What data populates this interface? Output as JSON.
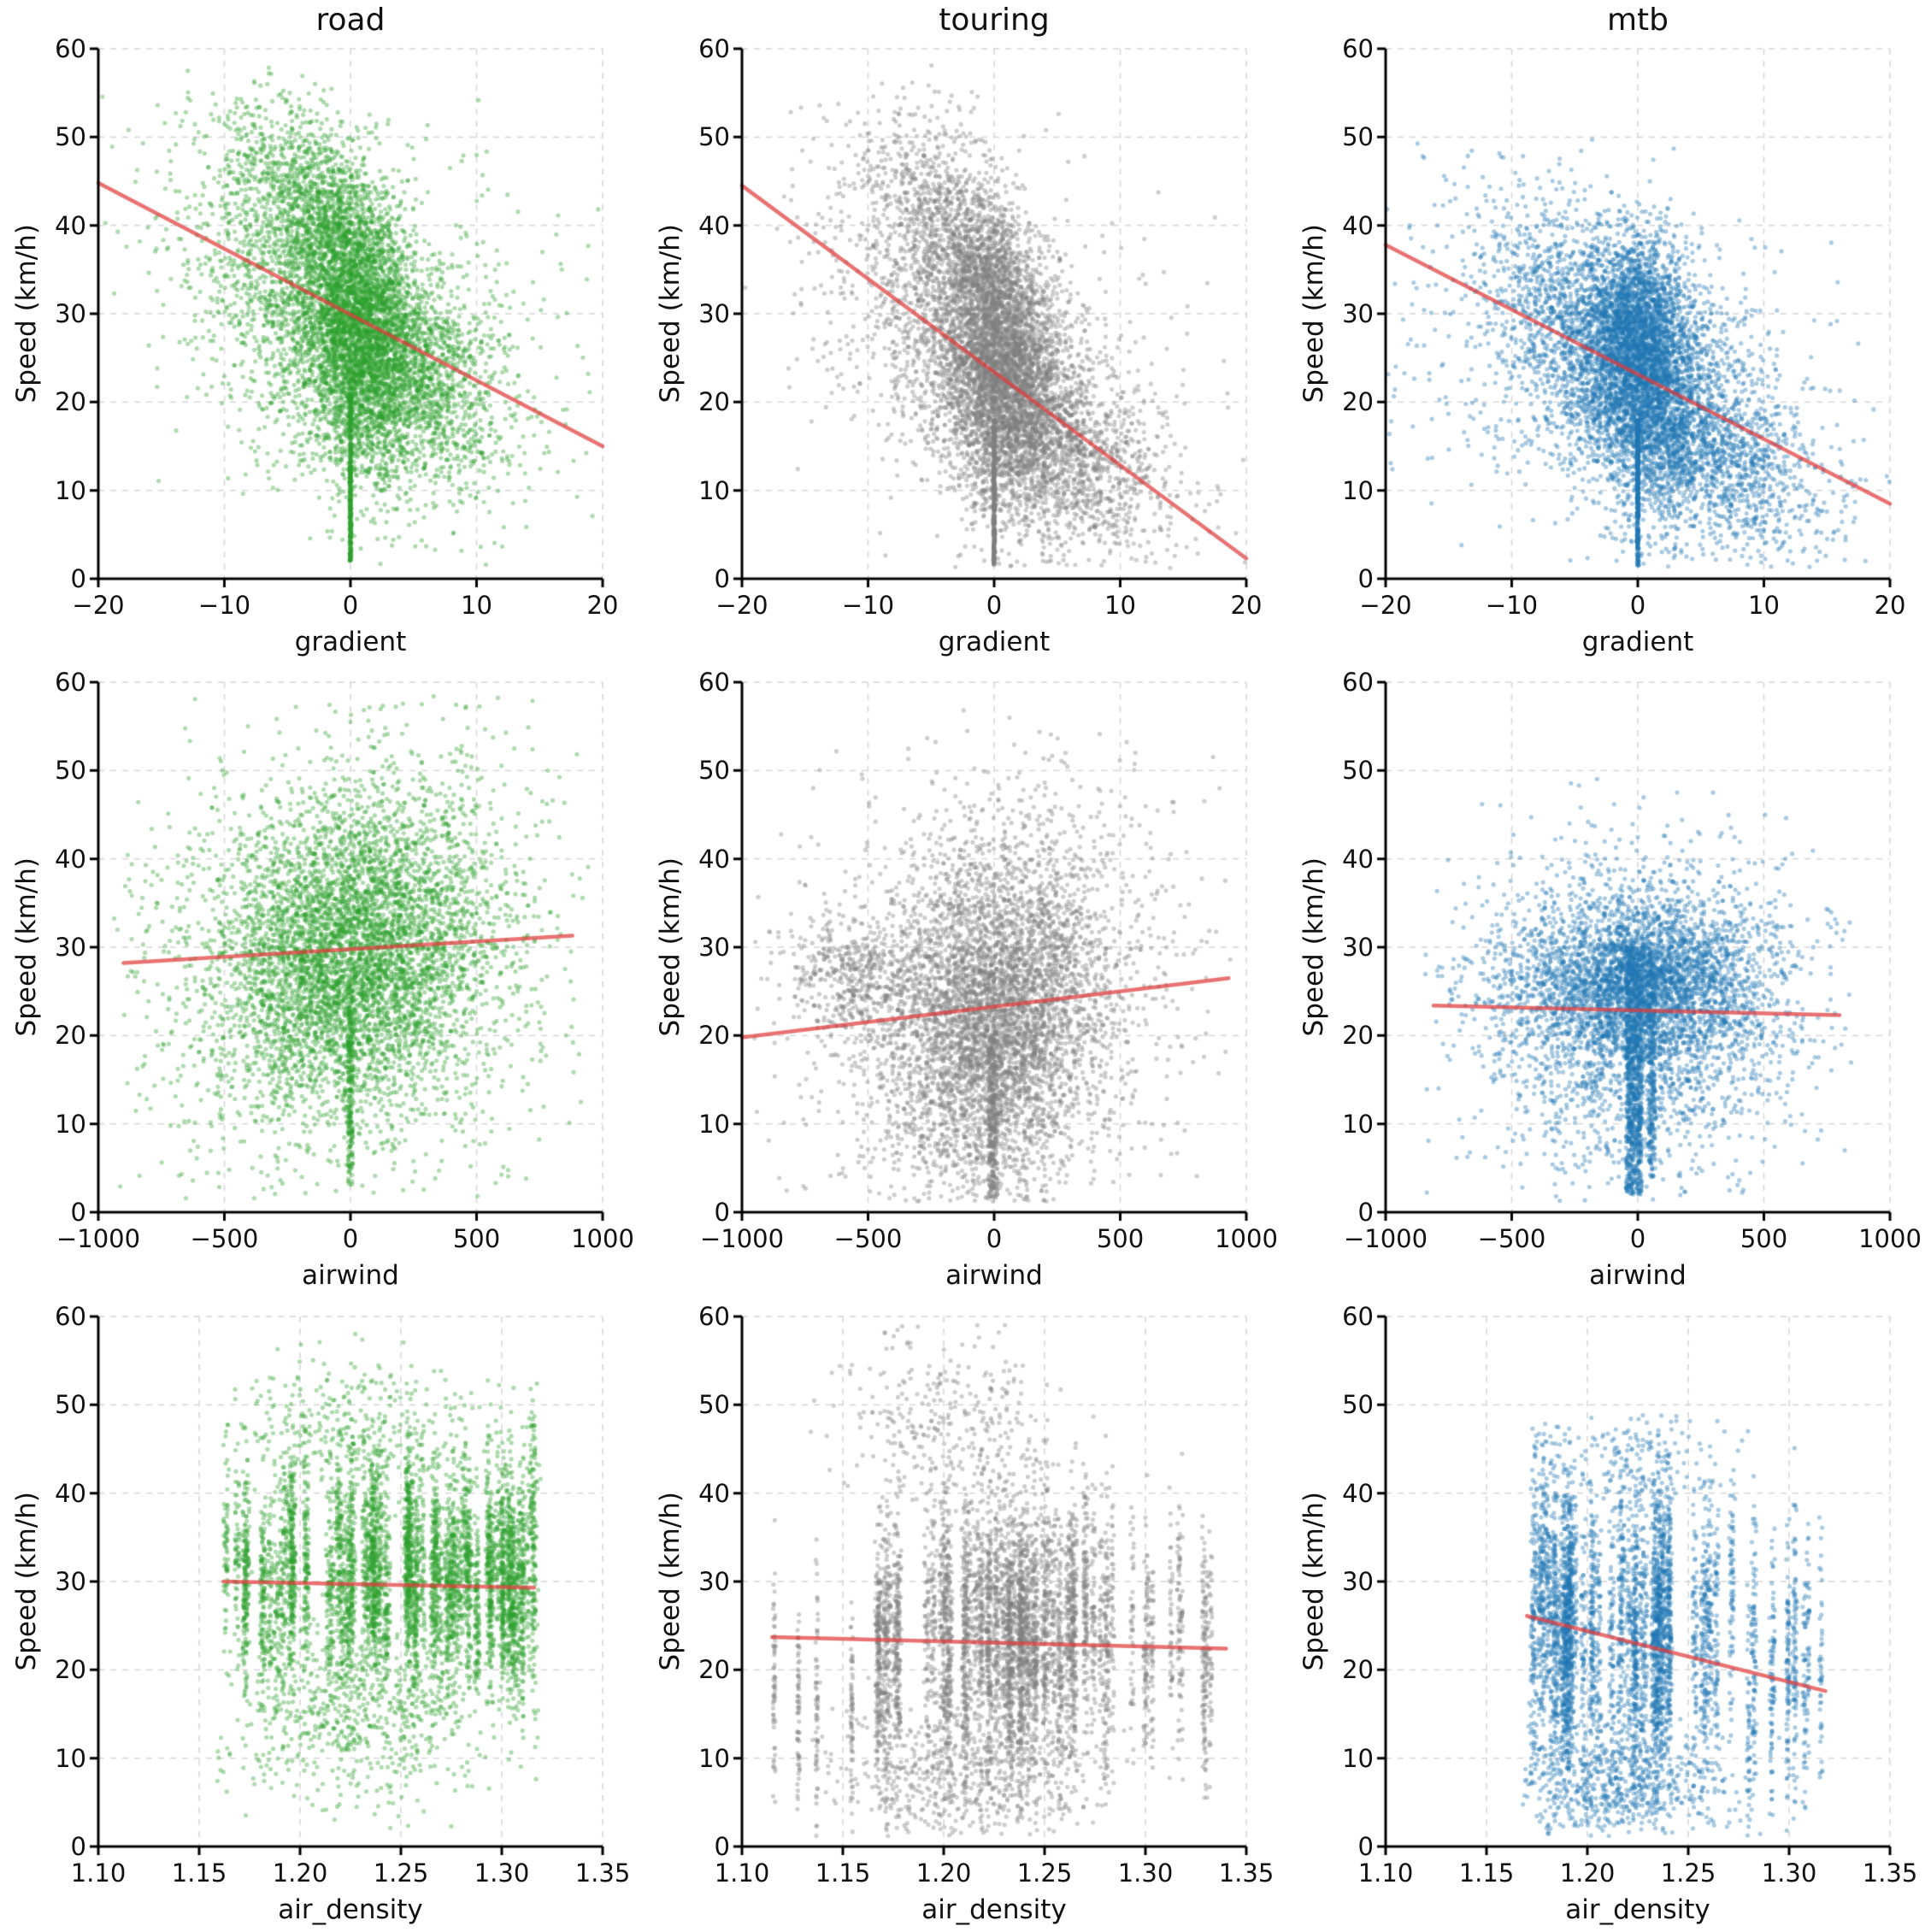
{
  "figure": {
    "rows": 3,
    "cols": 3,
    "background": "#ffffff"
  },
  "style": {
    "grid_color": "#d8d8d8",
    "axis_color": "#000000",
    "text_color": "#111111",
    "dot_radius": 2.6,
    "dot_opacity": 0.38,
    "trend_width": 4.5,
    "trend_opacity": 0.72
  },
  "columns": [
    {
      "title": "road",
      "color": "#2ca02c"
    },
    {
      "title": "touring",
      "color": "#7f7f7f"
    },
    {
      "title": "mtb",
      "color": "#1f77b4"
    }
  ],
  "chart_data": [
    {
      "id": "road-gradient",
      "type": "scatter",
      "row": 0,
      "col": 0,
      "title": "road",
      "xlabel": "gradient",
      "ylabel": "Speed (km/h)",
      "xlim": [
        -20,
        20
      ],
      "ylim": [
        0,
        60
      ],
      "xtick_values": [
        -20,
        -10,
        0,
        10,
        20
      ],
      "xticklabels": [
        "−20",
        "−10",
        "0",
        "10",
        "20"
      ],
      "ytick_values": [
        0,
        10,
        20,
        30,
        40,
        50,
        60
      ],
      "yticklabels": [
        "0",
        "10",
        "20",
        "30",
        "40",
        "50",
        "60"
      ],
      "point_color": "#2ca02c",
      "seed": 11,
      "yclip": [
        1.5,
        58.5
      ],
      "xclip": [
        -20,
        20
      ],
      "trend": {
        "x": [
          -20,
          20
        ],
        "y": [
          44.8,
          15.0
        ],
        "color": "#e03c3c"
      },
      "clouds": [
        {
          "t": "g",
          "n": 2400,
          "cx": -0.6,
          "cy": 29,
          "sx": 5.5,
          "sy": 9,
          "rho": -0.45
        },
        {
          "t": "g",
          "n": 2600,
          "cx": 0.8,
          "cy": 26.5,
          "sx": 2.3,
          "sy": 7.5,
          "rho": -0.15
        },
        {
          "t": "g",
          "n": 800,
          "cx": -0.7,
          "cy": 38,
          "sx": 2.1,
          "sy": 5,
          "rho": -0.2
        },
        {
          "t": "g",
          "n": 650,
          "cx": -4.5,
          "cy": 45,
          "sx": 3.2,
          "sy": 5.5,
          "rho": -0.35
        },
        {
          "t": "g",
          "n": 900,
          "cx": 4.8,
          "cy": 24,
          "sx": 3.6,
          "sy": 5.5,
          "rho": -0.55
        },
        {
          "t": "g",
          "n": 600,
          "cx": 0,
          "cy": 30,
          "sx": 9,
          "sy": 12,
          "rho": -0.4
        },
        {
          "t": "v",
          "n": 380,
          "x": 0,
          "jx": 0.07,
          "y0": 2,
          "y1": 21
        }
      ]
    },
    {
      "id": "touring-gradient",
      "type": "scatter",
      "row": 0,
      "col": 1,
      "title": "touring",
      "xlabel": "gradient",
      "ylabel": "Speed (km/h)",
      "xlim": [
        -20,
        20
      ],
      "ylim": [
        0,
        60
      ],
      "xtick_values": [
        -20,
        -10,
        0,
        10,
        20
      ],
      "xticklabels": [
        "−20",
        "−10",
        "0",
        "10",
        "20"
      ],
      "ytick_values": [
        0,
        10,
        20,
        30,
        40,
        50,
        60
      ],
      "yticklabels": [
        "0",
        "10",
        "20",
        "30",
        "40",
        "50",
        "60"
      ],
      "point_color": "#7f7f7f",
      "seed": 22,
      "yclip": [
        1.2,
        58.5
      ],
      "xclip": [
        -20,
        20
      ],
      "trend": {
        "x": [
          -20,
          20
        ],
        "y": [
          44.5,
          2.3
        ],
        "color": "#e03c3c"
      },
      "clouds": [
        {
          "t": "g",
          "n": 2400,
          "cx": -0.4,
          "cy": 25,
          "sx": 5,
          "sy": 9,
          "rho": -0.5
        },
        {
          "t": "g",
          "n": 2600,
          "cx": 0.7,
          "cy": 22.5,
          "sx": 2.2,
          "sy": 7.5,
          "rho": -0.2
        },
        {
          "t": "g",
          "n": 700,
          "cx": -0.6,
          "cy": 34,
          "sx": 2.0,
          "sy": 5,
          "rho": -0.2
        },
        {
          "t": "g",
          "n": 650,
          "cx": -4.5,
          "cy": 42,
          "sx": 3.2,
          "sy": 6,
          "rho": -0.35
        },
        {
          "t": "g",
          "n": 1000,
          "cx": 5.8,
          "cy": 14.5,
          "sx": 4.2,
          "sy": 5.5,
          "rho": -0.5
        },
        {
          "t": "g",
          "n": 600,
          "cx": 0,
          "cy": 26,
          "sx": 9,
          "sy": 12,
          "rho": -0.45
        },
        {
          "t": "v",
          "n": 380,
          "x": 0,
          "jx": 0.07,
          "y0": 1.5,
          "y1": 18
        }
      ]
    },
    {
      "id": "mtb-gradient",
      "type": "scatter",
      "row": 0,
      "col": 2,
      "title": "mtb",
      "xlabel": "gradient",
      "ylabel": "Speed (km/h)",
      "xlim": [
        -20,
        20
      ],
      "ylim": [
        0,
        60
      ],
      "xtick_values": [
        -20,
        -10,
        0,
        10,
        20
      ],
      "xticklabels": [
        "−20",
        "−10",
        "0",
        "10",
        "20"
      ],
      "ytick_values": [
        0,
        10,
        20,
        30,
        40,
        50,
        60
      ],
      "yticklabels": [
        "0",
        "10",
        "20",
        "30",
        "40",
        "50",
        "60"
      ],
      "point_color": "#1f77b4",
      "seed": 33,
      "yclip": [
        1.2,
        50
      ],
      "xclip": [
        -20,
        20
      ],
      "trend": {
        "x": [
          -20,
          20
        ],
        "y": [
          37.8,
          8.5
        ],
        "color": "#e03c3c"
      },
      "clouds": [
        {
          "t": "g",
          "n": 2200,
          "cx": 0,
          "cy": 23.5,
          "sx": 5,
          "sy": 8,
          "rho": -0.45
        },
        {
          "t": "g",
          "n": 2300,
          "cx": 0.4,
          "cy": 23,
          "sx": 2.3,
          "sy": 7,
          "rho": -0.15
        },
        {
          "t": "g",
          "n": 900,
          "cx": 0.1,
          "cy": 29,
          "sx": 1.7,
          "sy": 5,
          "rho": 0
        },
        {
          "t": "g",
          "n": 650,
          "cx": -5.5,
          "cy": 30,
          "sx": 4,
          "sy": 7,
          "rho": -0.45
        },
        {
          "t": "g",
          "n": 950,
          "cx": 6,
          "cy": 13.5,
          "sx": 4.5,
          "sy": 5.5,
          "rho": -0.5
        },
        {
          "t": "g",
          "n": 700,
          "cx": -1,
          "cy": 21,
          "sx": 9.5,
          "sy": 11,
          "rho": -0.35
        },
        {
          "t": "v",
          "n": 380,
          "x": 0,
          "jx": 0.07,
          "y0": 1.5,
          "y1": 18
        }
      ]
    },
    {
      "id": "road-airwind",
      "type": "scatter",
      "row": 1,
      "col": 0,
      "title": null,
      "xlabel": "airwind",
      "ylabel": "Speed (km/h)",
      "xlim": [
        -1000,
        1000
      ],
      "ylim": [
        0,
        60
      ],
      "xtick_values": [
        -1000,
        -500,
        0,
        500,
        1000
      ],
      "xticklabels": [
        "−1000",
        "−500",
        "0",
        "500",
        "1000"
      ],
      "ytick_values": [
        0,
        10,
        20,
        30,
        40,
        50,
        60
      ],
      "yticklabels": [
        "0",
        "10",
        "20",
        "30",
        "40",
        "50",
        "60"
      ],
      "point_color": "#2ca02c",
      "seed": 44,
      "yclip": [
        1.5,
        58.5
      ],
      "xclip": [
        -950,
        950
      ],
      "trend": {
        "x": [
          -900,
          880
        ],
        "y": [
          28.2,
          31.3
        ],
        "color": "#e03c3c"
      },
      "clouds": [
        {
          "t": "g",
          "n": 4600,
          "cx": 0,
          "cy": 29,
          "sx": 270,
          "sy": 8.5,
          "rho": 0.08
        },
        {
          "t": "g",
          "n": 1600,
          "cx": 0,
          "cy": 29,
          "sx": 430,
          "sy": 13,
          "rho": 0.08
        },
        {
          "t": "v",
          "n": 220,
          "x": 0,
          "jx": 10,
          "y0": 3,
          "y1": 26
        }
      ]
    },
    {
      "id": "touring-airwind",
      "type": "scatter",
      "row": 1,
      "col": 1,
      "title": null,
      "xlabel": "airwind",
      "ylabel": "Speed (km/h)",
      "xlim": [
        -1000,
        1000
      ],
      "ylim": [
        0,
        60
      ],
      "xtick_values": [
        -1000,
        -500,
        0,
        500,
        1000
      ],
      "xticklabels": [
        "−1000",
        "−500",
        "0",
        "500",
        "1000"
      ],
      "ytick_values": [
        0,
        10,
        20,
        30,
        40,
        50,
        60
      ],
      "yticklabels": [
        "0",
        "10",
        "20",
        "30",
        "40",
        "50",
        "60"
      ],
      "point_color": "#7f7f7f",
      "seed": 55,
      "yclip": [
        1.2,
        59
      ],
      "xclip": [
        -950,
        950
      ],
      "trend": {
        "x": [
          -1000,
          930
        ],
        "y": [
          19.8,
          26.5
        ],
        "color": "#e03c3c"
      },
      "clouds": [
        {
          "t": "g",
          "n": 4200,
          "cx": 0,
          "cy": 22,
          "sx": 215,
          "sy": 9.5,
          "rho": 0.12
        },
        {
          "t": "g",
          "n": 1500,
          "cx": 0,
          "cy": 24,
          "sx": 410,
          "sy": 12,
          "rho": 0.12
        },
        {
          "t": "g",
          "n": 450,
          "cx": -560,
          "cy": 27,
          "sx": 140,
          "sy": 3.5,
          "rho": 0
        },
        {
          "t": "v",
          "n": 300,
          "x": -5,
          "jx": 18,
          "y0": 1.5,
          "y1": 20
        }
      ]
    },
    {
      "id": "mtb-airwind",
      "type": "scatter",
      "row": 1,
      "col": 2,
      "title": null,
      "xlabel": "airwind",
      "ylabel": "Speed (km/h)",
      "xlim": [
        -1000,
        1000
      ],
      "ylim": [
        0,
        60
      ],
      "xtick_values": [
        -1000,
        -500,
        0,
        500,
        1000
      ],
      "xticklabels": [
        "−1000",
        "−500",
        "0",
        "500",
        "1000"
      ],
      "ytick_values": [
        0,
        10,
        20,
        30,
        40,
        50,
        60
      ],
      "yticklabels": [
        "0",
        "10",
        "20",
        "30",
        "40",
        "50",
        "60"
      ],
      "point_color": "#1f77b4",
      "seed": 66,
      "yclip": [
        1.2,
        50
      ],
      "xclip": [
        -850,
        850
      ],
      "trend": {
        "x": [
          -810,
          800
        ],
        "y": [
          23.4,
          22.3
        ],
        "color": "#e03c3c"
      },
      "clouds": [
        {
          "t": "g",
          "n": 2900,
          "cx": 10,
          "cy": 26,
          "sx": 255,
          "sy": 4.6,
          "rho": 0
        },
        {
          "t": "g",
          "n": 1500,
          "cx": 0,
          "cy": 20,
          "sx": 300,
          "sy": 8.5,
          "rho": 0
        },
        {
          "t": "v",
          "n": 950,
          "x": -15,
          "jx": 32,
          "y0": 2,
          "y1": 30
        },
        {
          "t": "v",
          "n": 280,
          "x": 55,
          "jx": 14,
          "y0": 4,
          "y1": 30
        },
        {
          "t": "g",
          "n": 700,
          "cx": 0,
          "cy": 24,
          "sx": 370,
          "sy": 10.5,
          "rho": 0
        }
      ]
    },
    {
      "id": "road-air_density",
      "type": "scatter",
      "row": 2,
      "col": 0,
      "title": null,
      "xlabel": "air_density",
      "ylabel": "Speed (km/h)",
      "xlim": [
        1.1,
        1.35
      ],
      "ylim": [
        0,
        60
      ],
      "xtick_values": [
        1.1,
        1.15,
        1.2,
        1.25,
        1.3,
        1.35
      ],
      "xticklabels": [
        "1.10",
        "1.15",
        "1.20",
        "1.25",
        "1.30",
        "1.35"
      ],
      "ytick_values": [
        0,
        10,
        20,
        30,
        40,
        50,
        60
      ],
      "yticklabels": [
        "0",
        "10",
        "20",
        "30",
        "40",
        "50",
        "60"
      ],
      "point_color": "#2ca02c",
      "seed": 77,
      "yclip": [
        2,
        58.5
      ],
      "xclip": [
        1.158,
        1.32
      ],
      "trend": {
        "x": [
          1.162,
          1.316
        ],
        "y": [
          30.0,
          29.3
        ],
        "color": "#e03c3c"
      },
      "clouds": [
        {
          "t": "s",
          "n": 4600,
          "k": 72,
          "x0": 1.162,
          "x1": 1.306,
          "cy": 30.5,
          "sy": 5.8,
          "so": 2.2,
          "jx": 0.0012
        },
        {
          "t": "s",
          "n": 700,
          "k": 20,
          "x0": 1.3,
          "x1": 1.316,
          "cy": 30,
          "sy": 6,
          "so": 2,
          "jx": 0.0008
        },
        {
          "t": "g",
          "n": 700,
          "cx": 1.23,
          "cy": 15,
          "sx": 0.034,
          "sy": 5.5,
          "rho": 0
        },
        {
          "t": "g",
          "n": 350,
          "cx": 1.225,
          "cy": 47,
          "sx": 0.03,
          "sy": 4,
          "rho": 0
        },
        {
          "t": "g",
          "n": 150,
          "cx": 1.3155,
          "cy": 36,
          "sx": 0.0012,
          "sy": 8,
          "rho": 0
        }
      ]
    },
    {
      "id": "touring-air_density",
      "type": "scatter",
      "row": 2,
      "col": 1,
      "title": null,
      "xlabel": "air_density",
      "ylabel": "Speed (km/h)",
      "xlim": [
        1.1,
        1.35
      ],
      "ylim": [
        0,
        60
      ],
      "xtick_values": [
        1.1,
        1.15,
        1.2,
        1.25,
        1.3,
        1.35
      ],
      "xticklabels": [
        "1.10",
        "1.15",
        "1.20",
        "1.25",
        "1.30",
        "1.35"
      ],
      "ytick_values": [
        0,
        10,
        20,
        30,
        40,
        50,
        60
      ],
      "yticklabels": [
        "0",
        "10",
        "20",
        "30",
        "40",
        "50",
        "60"
      ],
      "point_color": "#7f7f7f",
      "seed": 88,
      "yclip": [
        1.2,
        59.8
      ],
      "xclip": [
        1.112,
        1.345
      ],
      "trend": {
        "x": [
          1.115,
          1.34
        ],
        "y": [
          23.7,
          22.4
        ],
        "color": "#e03c3c"
      },
      "clouds": [
        {
          "t": "s",
          "n": 4200,
          "k": 60,
          "x0": 1.165,
          "x1": 1.275,
          "cy": 24,
          "sy": 7.5,
          "so": 2.5,
          "jx": 0.0012
        },
        {
          "t": "s",
          "n": 700,
          "k": 16,
          "x0": 1.275,
          "x1": 1.34,
          "cy": 23,
          "sy": 7,
          "so": 2.5,
          "jx": 0.0008
        },
        {
          "t": "s",
          "n": 260,
          "k": 4,
          "x0": 1.115,
          "x1": 1.155,
          "cy": 17,
          "sy": 7,
          "so": 2,
          "jx": 0.0006
        },
        {
          "t": "g",
          "n": 300,
          "cx": 1.2,
          "cy": 48,
          "sx": 0.025,
          "sy": 5,
          "rho": 0
        },
        {
          "t": "g",
          "n": 600,
          "cx": 1.21,
          "cy": 8,
          "sx": 0.03,
          "sy": 4,
          "rho": 0
        }
      ]
    },
    {
      "id": "mtb-air_density",
      "type": "scatter",
      "row": 2,
      "col": 2,
      "title": null,
      "xlabel": "air_density",
      "ylabel": "Speed (km/h)",
      "xlim": [
        1.1,
        1.35
      ],
      "ylim": [
        0,
        60
      ],
      "xtick_values": [
        1.1,
        1.15,
        1.2,
        1.25,
        1.3,
        1.35
      ],
      "xticklabels": [
        "1.10",
        "1.15",
        "1.20",
        "1.25",
        "1.30",
        "1.35"
      ],
      "ytick_values": [
        0,
        10,
        20,
        30,
        40,
        50,
        60
      ],
      "yticklabels": [
        "0",
        "10",
        "20",
        "30",
        "40",
        "50",
        "60"
      ],
      "point_color": "#1f77b4",
      "seed": 99,
      "yclip": [
        1.2,
        49
      ],
      "xclip": [
        1.168,
        1.325
      ],
      "trend": {
        "x": [
          1.17,
          1.318
        ],
        "y": [
          26.1,
          17.6
        ],
        "color": "#e03c3c"
      },
      "clouds": [
        {
          "t": "s",
          "n": 3900,
          "k": 50,
          "x0": 1.172,
          "x1": 1.272,
          "cy": 24.5,
          "sy": 8,
          "so": 2.5,
          "jx": 0.0012
        },
        {
          "t": "s",
          "n": 550,
          "k": 12,
          "x0": 1.272,
          "x1": 1.318,
          "cy": 21,
          "sy": 7.5,
          "so": 2.5,
          "jx": 0.0008
        },
        {
          "t": "g",
          "n": 650,
          "cx": 1.215,
          "cy": 7,
          "sx": 0.028,
          "sy": 3.5,
          "rho": 0
        },
        {
          "t": "g",
          "n": 180,
          "cx": 1.225,
          "cy": 43,
          "sx": 0.025,
          "sy": 3,
          "rho": 0
        }
      ]
    }
  ]
}
